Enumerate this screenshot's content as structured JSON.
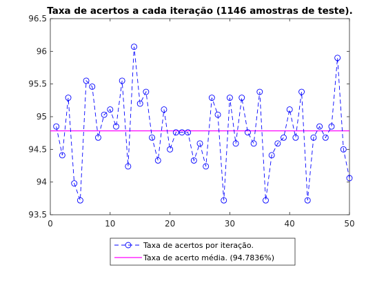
{
  "chart_data": {
    "type": "line",
    "title": "Taxa de acertos a cada iteração (1146 amostras de teste).",
    "xlabel": "",
    "ylabel": "",
    "xlim": [
      0,
      50
    ],
    "ylim": [
      93.5,
      96.5
    ],
    "xticks": [
      "0",
      "10",
      "20",
      "30",
      "40",
      "50"
    ],
    "yticks": [
      "93.5",
      "94",
      "94.5",
      "95",
      "95.5",
      "96",
      "96.5"
    ],
    "grid": false,
    "legend_position": "bottom-center",
    "series": [
      {
        "name": "Taxa de acertos por iteração.",
        "style": "dashed-circle-markers",
        "color": "#0000ff",
        "x": [
          1,
          2,
          3,
          4,
          5,
          6,
          7,
          8,
          9,
          10,
          11,
          12,
          13,
          14,
          15,
          16,
          17,
          18,
          19,
          20,
          21,
          22,
          23,
          24,
          25,
          26,
          27,
          28,
          29,
          30,
          31,
          32,
          33,
          34,
          35,
          36,
          37,
          38,
          39,
          40,
          41,
          42,
          43,
          44,
          45,
          46,
          47,
          48,
          49,
          50
        ],
        "values": [
          94.85,
          94.41,
          95.29,
          93.98,
          93.72,
          95.55,
          95.46,
          94.68,
          95.03,
          95.11,
          94.85,
          95.55,
          94.24,
          96.07,
          95.2,
          95.38,
          94.68,
          94.33,
          95.11,
          94.5,
          94.76,
          94.76,
          94.76,
          94.33,
          94.59,
          94.24,
          95.29,
          95.03,
          93.72,
          95.29,
          94.59,
          95.29,
          94.76,
          94.59,
          95.38,
          93.72,
          94.41,
          94.59,
          94.68,
          95.11,
          94.68,
          95.38,
          93.72,
          94.68,
          94.85,
          94.68,
          94.85,
          95.9,
          94.5,
          94.06
        ]
      },
      {
        "name": "Taxa de acerto média. (94.7836%)",
        "style": "solid",
        "color": "#ff00ff",
        "x": [
          0,
          50
        ],
        "values": [
          94.7836,
          94.7836
        ]
      }
    ]
  }
}
